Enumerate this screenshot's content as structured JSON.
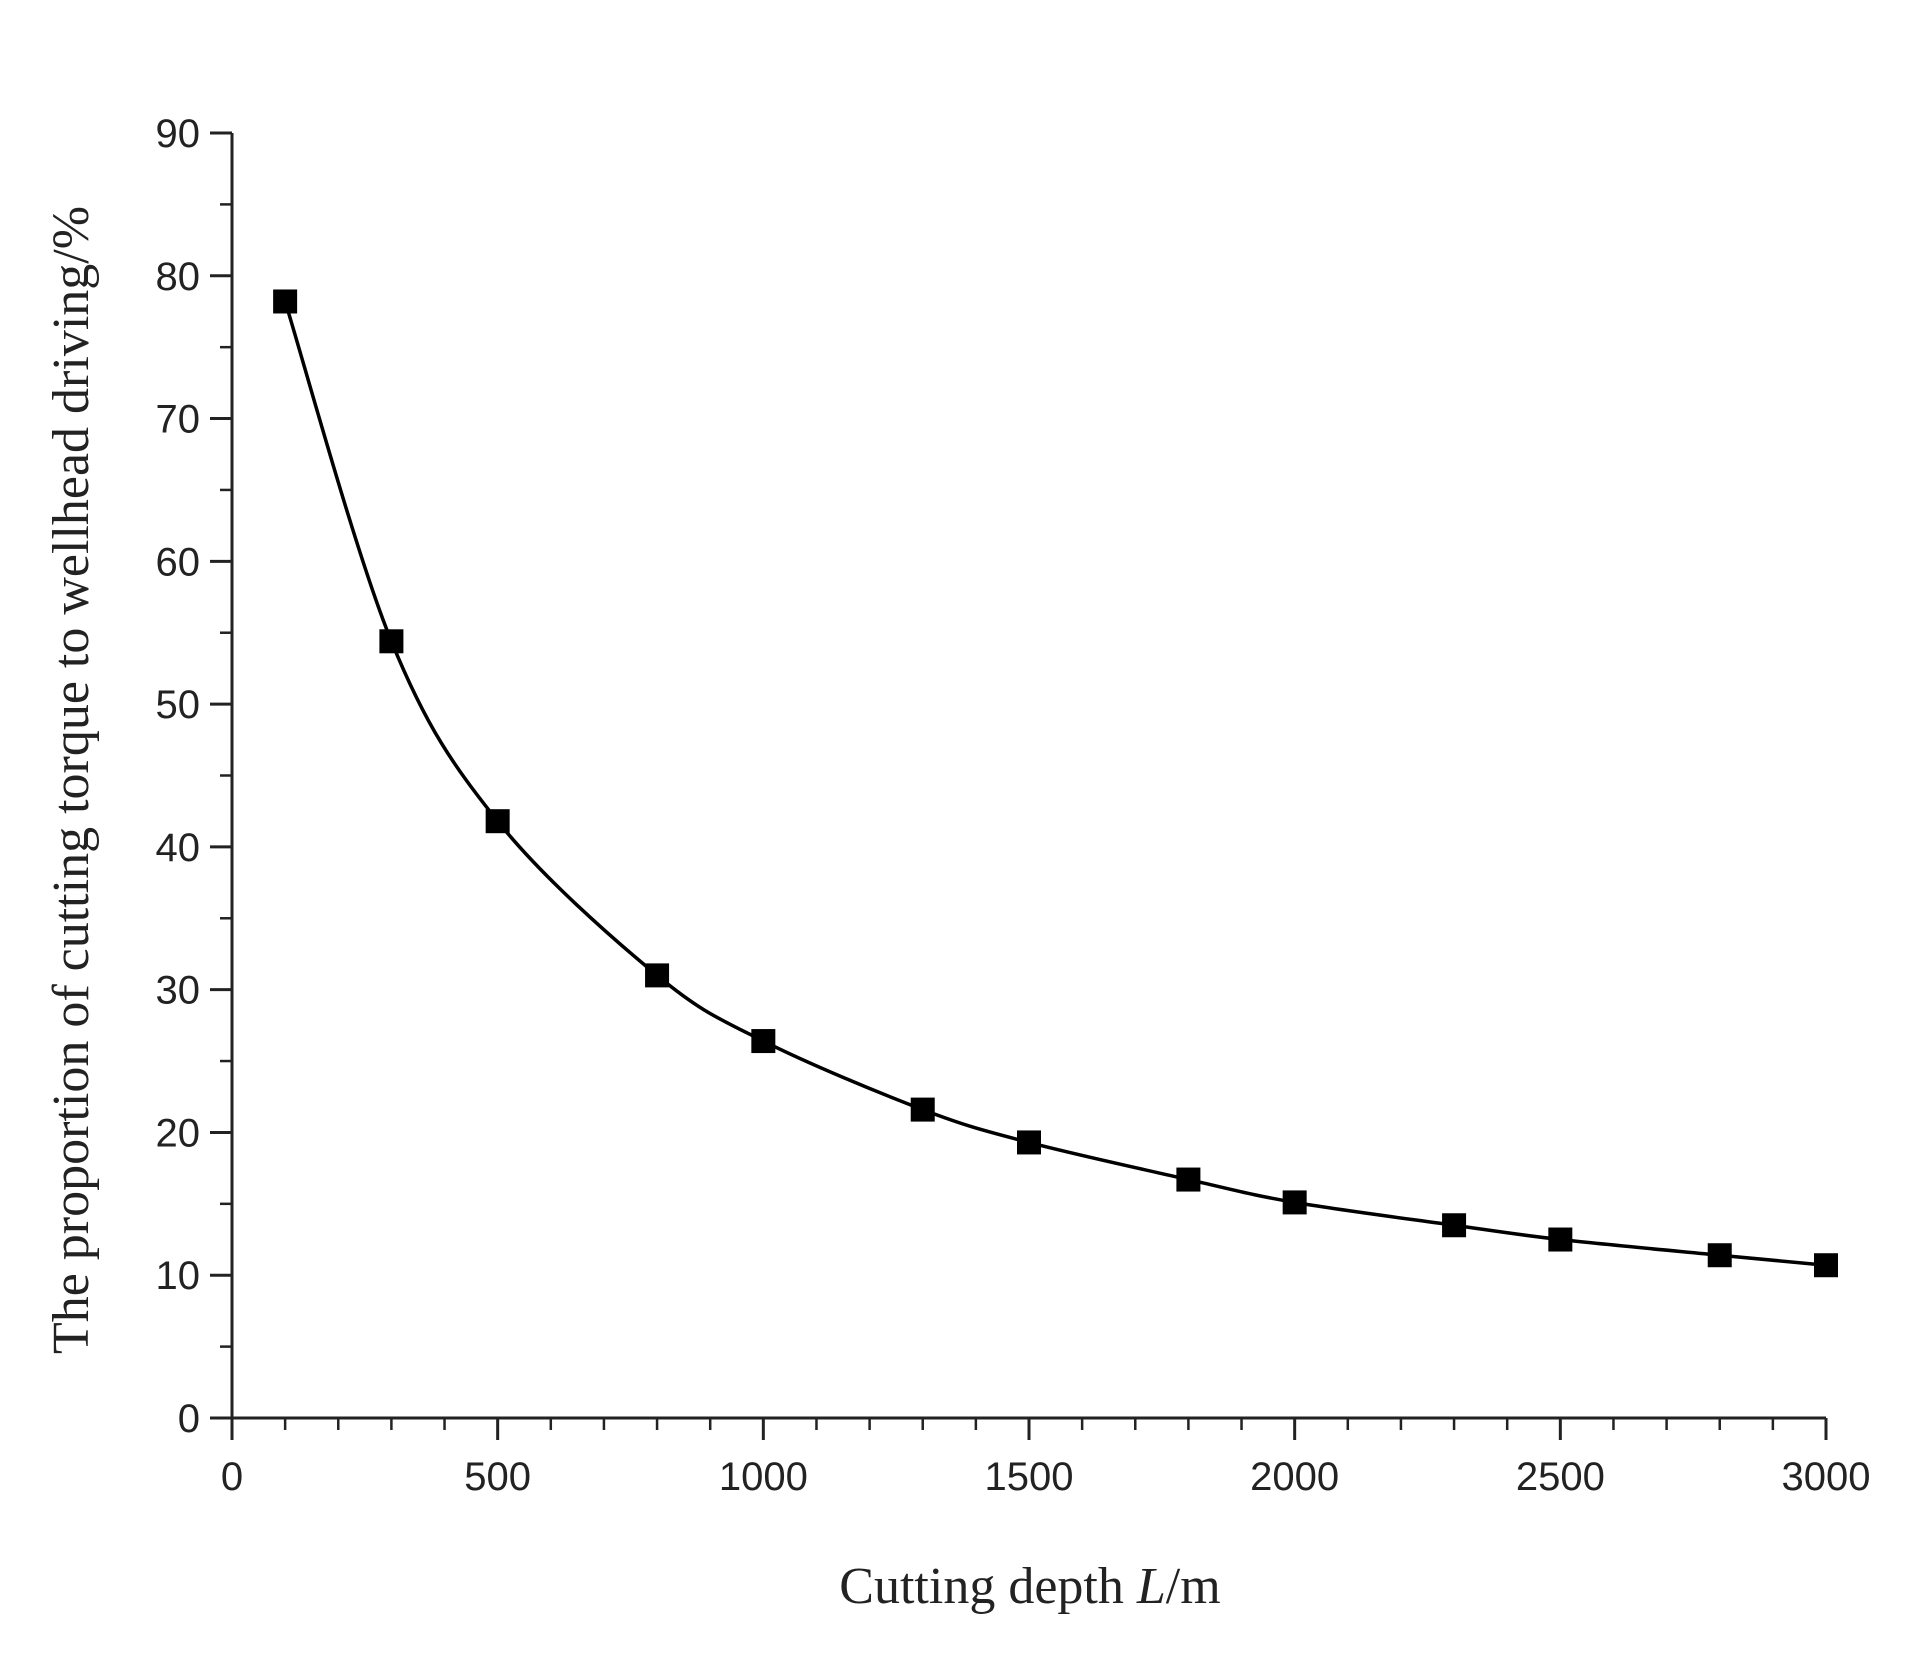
{
  "chart_data": {
    "type": "line",
    "x": [
      100,
      300,
      500,
      800,
      1000,
      1300,
      1500,
      1800,
      2000,
      2300,
      2500,
      2800,
      3000
    ],
    "series": [
      {
        "values": [
          78.2,
          54.4,
          41.8,
          31.0,
          26.4,
          21.6,
          19.3,
          16.7,
          15.1,
          13.5,
          12.5,
          11.4,
          10.7
        ],
        "marker": "square",
        "color": "#000000"
      }
    ],
    "xlabel": {
      "pre": "Cutting depth ",
      "var": "L",
      "post": "/m"
    },
    "ylabel": "The proportion of cutting torque to wellhead driving/%",
    "xlim": [
      0,
      3000
    ],
    "ylim": [
      0,
      90
    ],
    "xticks": [
      0,
      500,
      1000,
      1500,
      2000,
      2500,
      3000
    ],
    "yticks": [
      0,
      10,
      20,
      30,
      40,
      50,
      60,
      70,
      80,
      90
    ],
    "grid": false,
    "legend": "none"
  }
}
